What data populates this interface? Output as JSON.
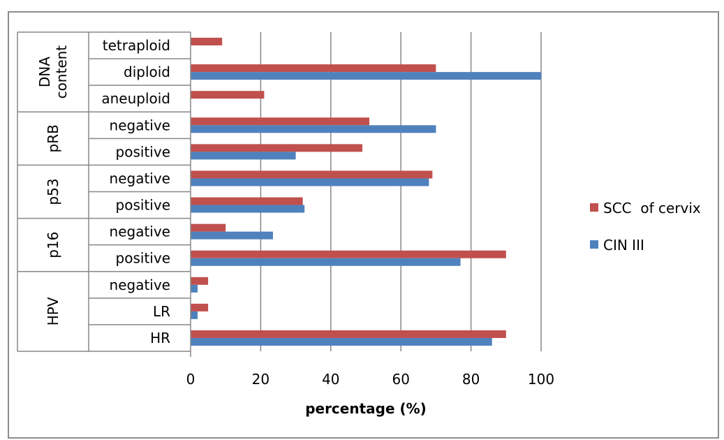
{
  "chart_data": {
    "type": "bar",
    "orientation": "horizontal",
    "xlabel": "percentage (%)",
    "xlim": [
      0,
      100
    ],
    "xticks": [
      0,
      20,
      40,
      60,
      80,
      100
    ],
    "grid": true,
    "legend_position": "right",
    "groups": [
      {
        "label": "DNA content",
        "categories": [
          "tetraploid",
          "diploid",
          "aneuploid"
        ]
      },
      {
        "label": "pRB",
        "categories": [
          "negative",
          "positive"
        ]
      },
      {
        "label": "p53",
        "categories": [
          "negative",
          "positive"
        ]
      },
      {
        "label": "p16",
        "categories": [
          "negative",
          "positive"
        ]
      },
      {
        "label": "HPV",
        "categories": [
          "negative",
          "LR",
          "HR"
        ]
      }
    ],
    "series": [
      {
        "name": "SCC  of cervix",
        "color": "#c0504d",
        "values": [
          9,
          70,
          21,
          51,
          49,
          69,
          32,
          10,
          90,
          5,
          5,
          90
        ]
      },
      {
        "name": "CIN III",
        "color": "#4f81bd",
        "values": [
          0,
          100,
          0,
          70,
          30,
          68,
          32.5,
          23.5,
          77,
          2,
          2,
          86
        ]
      }
    ]
  }
}
